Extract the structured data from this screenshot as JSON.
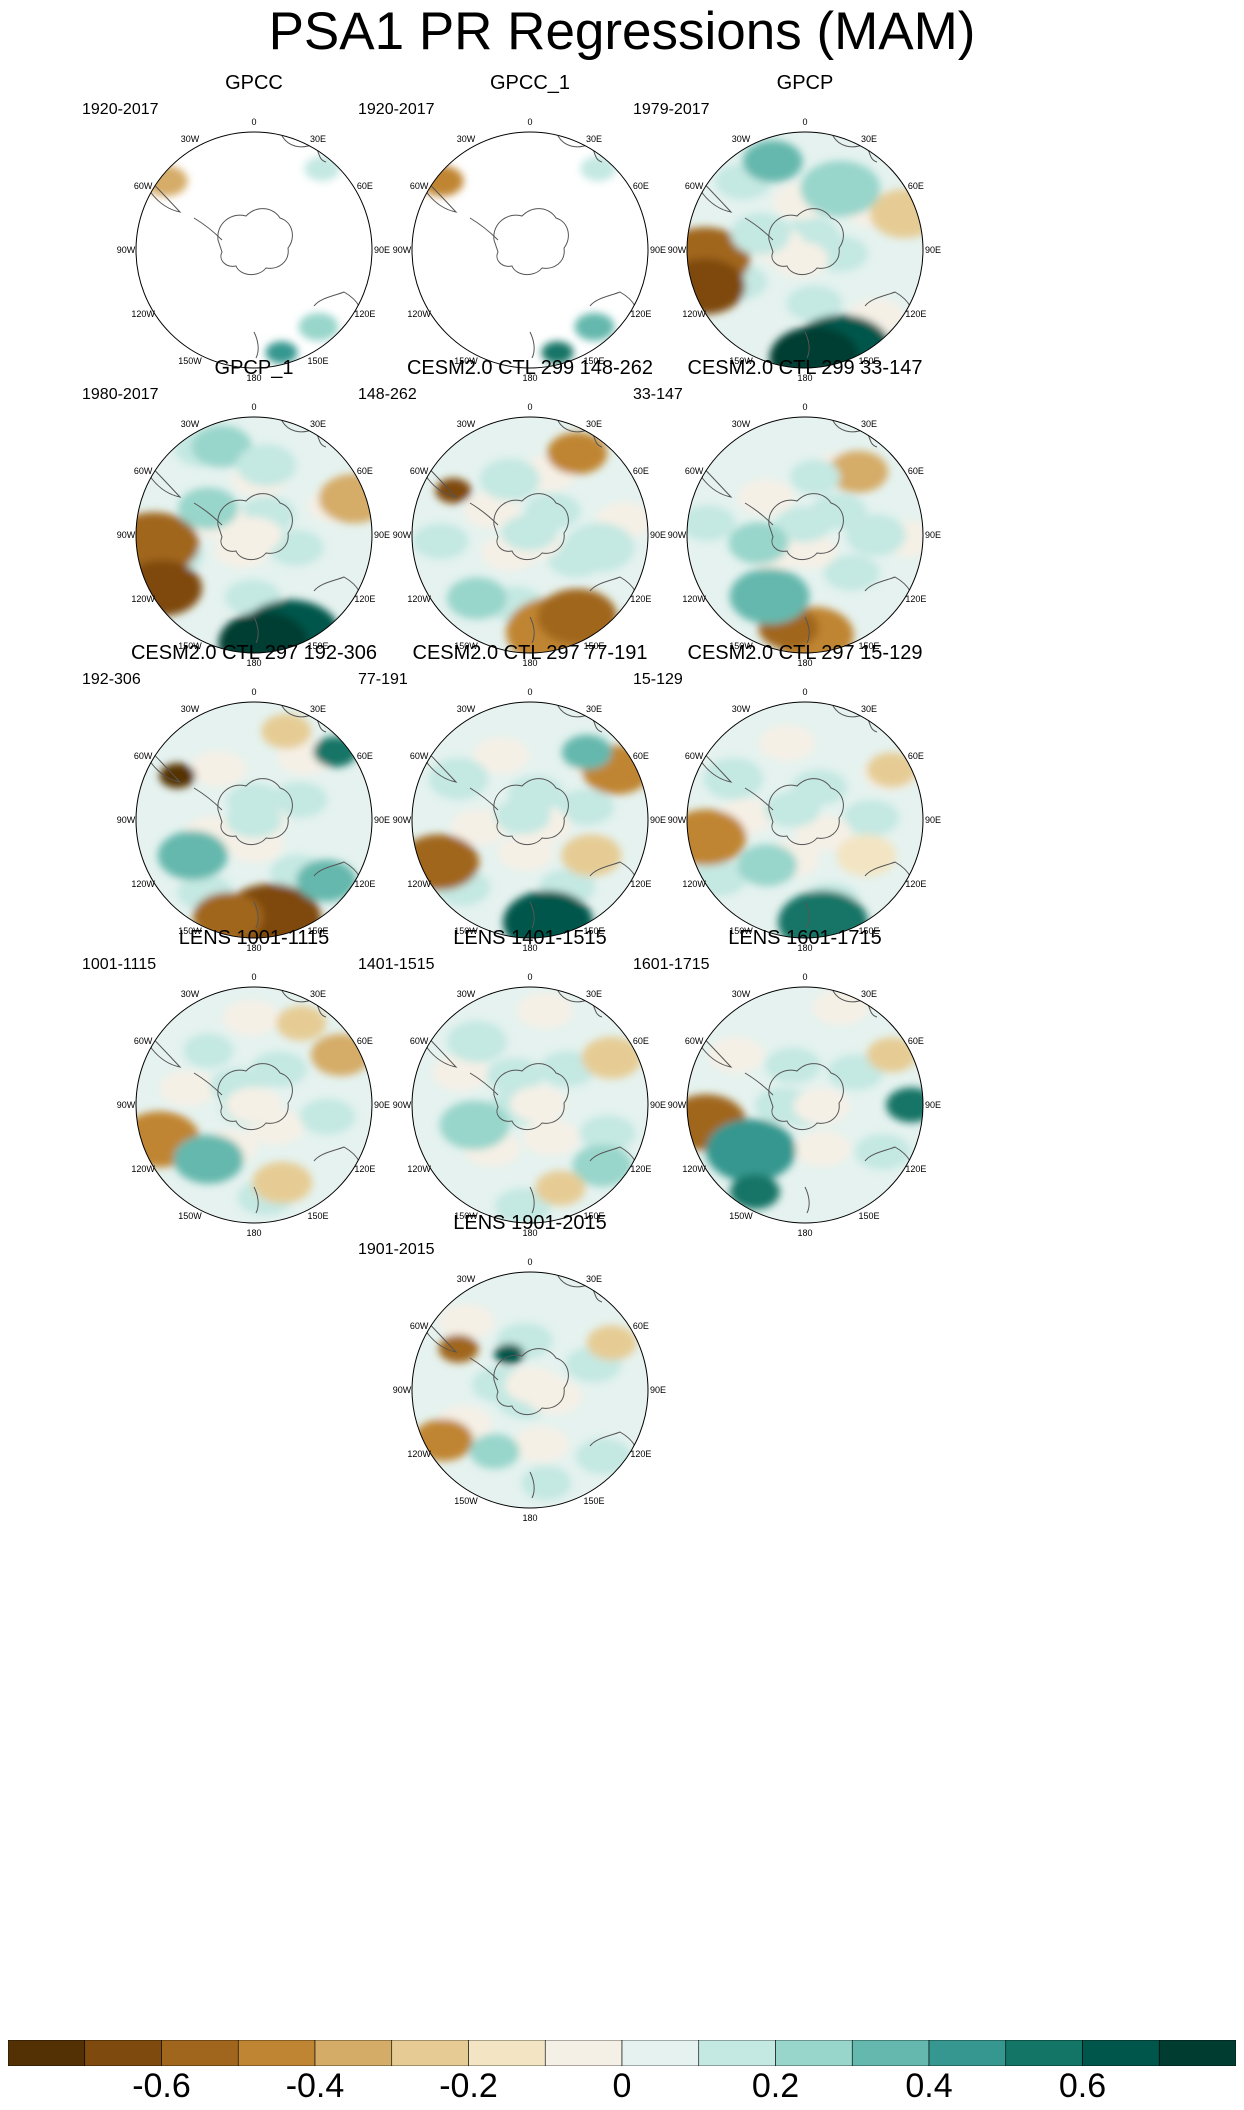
{
  "title": "PSA1 PR Regressions (MAM)",
  "panels": [
    {
      "title": "GPCC",
      "years": "1920-2017",
      "coverage": "land"
    },
    {
      "title": "GPCC_1",
      "years": "1920-2017",
      "coverage": "land"
    },
    {
      "title": "GPCP",
      "years": "1979-2017",
      "coverage": "full"
    },
    {
      "title": "GPCP_1",
      "years": "1980-2017",
      "coverage": "full"
    },
    {
      "title": "CESM2.0 CTL 299 148-262",
      "years": "148-262",
      "coverage": "full"
    },
    {
      "title": "CESM2.0 CTL 299 33-147",
      "years": "33-147",
      "coverage": "full"
    },
    {
      "title": "CESM2.0 CTL 297 192-306",
      "years": "192-306",
      "coverage": "full"
    },
    {
      "title": "CESM2.0 CTL 297 77-191",
      "years": "77-191",
      "coverage": "full"
    },
    {
      "title": "CESM2.0 CTL 297 15-129",
      "years": "15-129",
      "coverage": "full"
    },
    {
      "title": "LENS 1001-1115",
      "years": "1001-1115",
      "coverage": "full"
    },
    {
      "title": "LENS 1401-1515",
      "years": "1401-1515",
      "coverage": "full"
    },
    {
      "title": "LENS 1601-1715",
      "years": "1601-1715",
      "coverage": "full"
    },
    {
      "title": "LENS 1901-2015",
      "years": "1901-2015",
      "coverage": "full"
    }
  ],
  "longitude_labels": [
    "0",
    "30E",
    "60E",
    "90E",
    "120E",
    "150E",
    "180",
    "150W",
    "120W",
    "90W",
    "60W",
    "30W"
  ],
  "colorbar": {
    "colors": [
      "#543005",
      "#7f4a0d",
      "#a0661e",
      "#c08533",
      "#d5ac67",
      "#e6cc94",
      "#f3e5c3",
      "#f5f0e6",
      "#e5f2ef",
      "#c4e8e2",
      "#98d5cb",
      "#65b8ad",
      "#35978f",
      "#127566",
      "#01564b",
      "#003c30"
    ],
    "tick_labels": [
      "-0.6",
      "-0.4",
      "-0.2",
      "0",
      "0.2",
      "0.4",
      "0.6"
    ],
    "tick_values": [
      -0.6,
      -0.4,
      -0.2,
      0,
      0.2,
      0.4,
      0.6
    ]
  }
}
